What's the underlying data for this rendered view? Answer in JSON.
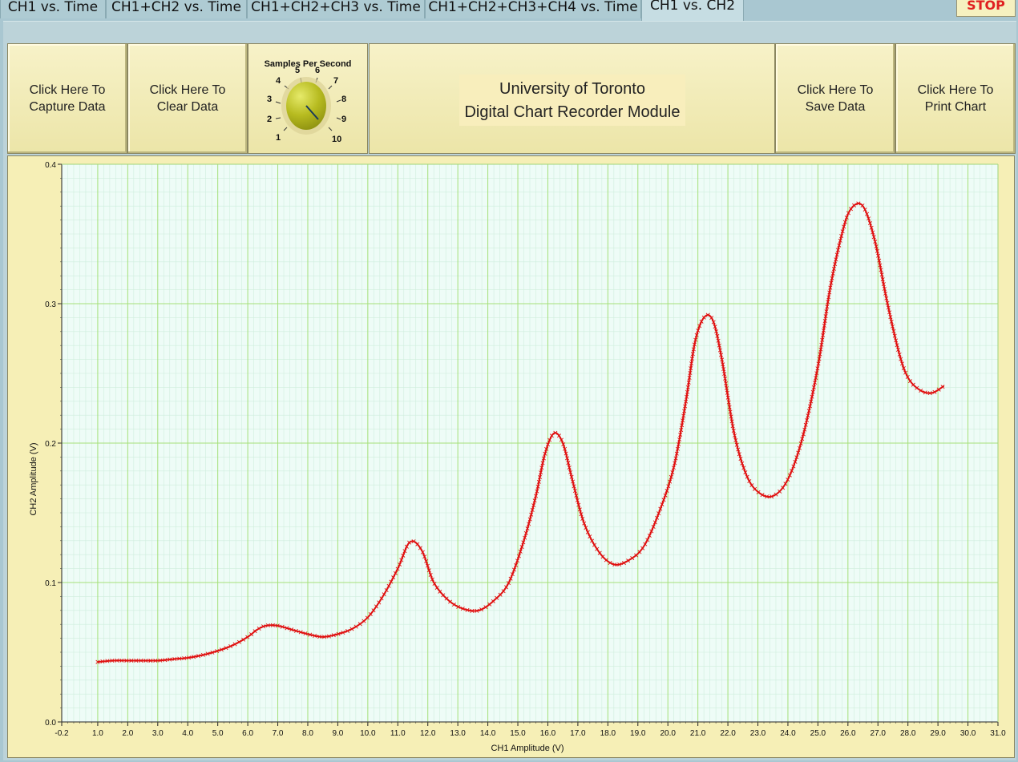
{
  "tabs": [
    {
      "label": "CH1 vs. Time"
    },
    {
      "label": "CH1+CH2 vs. Time"
    },
    {
      "label": "CH1+CH2+CH3 vs. Time"
    },
    {
      "label": "CH1+CH2+CH3+CH4 vs. Time"
    },
    {
      "label": "CH1 vs. CH2"
    }
  ],
  "active_tab": "CH1 vs. CH2",
  "stop_label": "STOP",
  "buttons": {
    "capture": {
      "line1": "Click Here To",
      "line2": "Capture Data"
    },
    "clear": {
      "line1": "Click Here To",
      "line2": "Clear Data"
    },
    "save": {
      "line1": "Click Here To",
      "line2": "Save Data"
    },
    "print": {
      "line1": "Click Here To",
      "line2": "Print Chart"
    }
  },
  "knob": {
    "title": "Samples Per Second",
    "scale": [
      "1",
      "2",
      "3",
      "4",
      "5",
      "6",
      "7",
      "8",
      "9",
      "10"
    ],
    "value": 9
  },
  "title": {
    "line1": "University of Toronto",
    "line2": "Digital Chart Recorder Module"
  },
  "colors": {
    "trace": "#e01010",
    "grid_major": "#a6e07a",
    "grid_minor": "#cfeedd",
    "plot_bg": "#eefcf7",
    "knob": "#9aa012"
  },
  "chart_data": {
    "type": "line",
    "xlabel": "CH1 Amplitude (V)",
    "ylabel": "CH2 Amplitude (V)",
    "xlim": [
      -0.2,
      31.0
    ],
    "ylim": [
      0.0,
      0.4
    ],
    "x_ticks": [
      "-0.2",
      "1.0",
      "2.0",
      "3.0",
      "4.0",
      "5.0",
      "6.0",
      "7.0",
      "8.0",
      "9.0",
      "10.0",
      "11.0",
      "12.0",
      "13.0",
      "14.0",
      "15.0",
      "16.0",
      "17.0",
      "18.0",
      "19.0",
      "20.0",
      "21.0",
      "22.0",
      "23.0",
      "24.0",
      "25.0",
      "26.0",
      "27.0",
      "28.0",
      "29.0",
      "30.0",
      "31.0"
    ],
    "y_ticks": [
      "0.0",
      "0.1",
      "0.2",
      "0.3",
      "0.4"
    ],
    "grid": true,
    "series": [
      {
        "x": [
          1.0,
          1.5,
          2.0,
          2.5,
          3.0,
          3.5,
          4.0,
          4.5,
          5.0,
          5.5,
          6.0,
          6.3,
          6.6,
          7.0,
          7.5,
          8.0,
          8.5,
          9.0,
          9.5,
          10.0,
          10.5,
          11.0,
          11.4,
          11.8,
          12.2,
          12.7,
          13.2,
          13.7,
          14.2,
          14.7,
          15.2,
          15.6,
          15.9,
          16.2,
          16.5,
          16.8,
          17.2,
          17.7,
          18.2,
          18.7,
          19.2,
          19.7,
          20.2,
          20.6,
          20.9,
          21.2,
          21.5,
          21.8,
          22.2,
          22.6,
          23.0,
          23.5,
          24.0,
          24.5,
          25.0,
          25.4,
          25.8,
          26.1,
          26.5,
          26.9,
          27.3,
          27.7,
          28.0,
          28.4,
          28.8,
          29.2
        ],
        "y": [
          0.043,
          0.044,
          0.044,
          0.044,
          0.044,
          0.045,
          0.046,
          0.048,
          0.051,
          0.055,
          0.061,
          0.066,
          0.069,
          0.069,
          0.066,
          0.063,
          0.061,
          0.063,
          0.067,
          0.075,
          0.09,
          0.11,
          0.129,
          0.123,
          0.1,
          0.087,
          0.081,
          0.08,
          0.087,
          0.1,
          0.13,
          0.162,
          0.192,
          0.207,
          0.2,
          0.175,
          0.143,
          0.122,
          0.113,
          0.116,
          0.126,
          0.15,
          0.183,
          0.23,
          0.272,
          0.29,
          0.288,
          0.26,
          0.208,
          0.178,
          0.165,
          0.162,
          0.174,
          0.205,
          0.255,
          0.31,
          0.35,
          0.368,
          0.37,
          0.345,
          0.302,
          0.265,
          0.247,
          0.238,
          0.236,
          0.241
        ]
      }
    ]
  }
}
